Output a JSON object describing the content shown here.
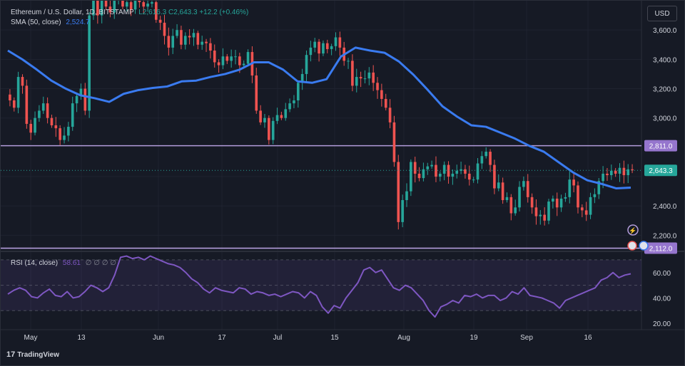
{
  "header": {
    "symbol": "Ethereum / U.S. Dollar, 1D, BITSTAMP",
    "ohlc_low": "L2,616.3",
    "ohlc_close": "C2,643.3",
    "ohlc_change": "+12.2 (+0.46%)",
    "sma_label": "SMA (50, close)",
    "sma_value": "2,524.7",
    "rsi_label": "RSI (14, close)",
    "rsi_value": "58.61",
    "rsi_placeholders": "∅  ∅  ∅  ∅",
    "currency": "USD",
    "brand": "TradingView"
  },
  "colors": {
    "up": "#26a69a",
    "down": "#ef5350",
    "sma": "#3a7bf0",
    "level": "#b39ddb",
    "rsi": "#7e57c2",
    "background": "#161a25"
  },
  "chart_data": [
    {
      "type": "candlestick",
      "series_name": "Ethereum / U.S. Dollar",
      "x_labels": [
        "May",
        "13",
        "Jun",
        "17",
        "Jul",
        "15",
        "Aug",
        "19",
        "Sep",
        "16"
      ],
      "y_ticks": [
        "3,600.0",
        "3,400.0",
        "3,200.0",
        "3,000.0",
        "2,400.0",
        "2,200.0"
      ],
      "ylim": [
        2100,
        3800
      ],
      "last_price": "2,643.3",
      "horizontal_levels": [
        {
          "value": 2811.0,
          "label": "2,811.0"
        },
        {
          "value": 2112.0,
          "label": "2,112.0"
        }
      ],
      "close": [
        3120,
        3070,
        3280,
        3220,
        2960,
        2900,
        3000,
        3050,
        3100,
        3000,
        2950,
        2930,
        2850,
        2880,
        2940,
        3100,
        3150,
        3200,
        3050,
        3700,
        3800,
        3700,
        3800,
        3760,
        3720,
        3800,
        3830,
        3760,
        3790,
        3740,
        3800,
        3790,
        3760,
        3780,
        3790,
        3670,
        3650,
        3560,
        3480,
        3560,
        3600,
        3500,
        3560,
        3550,
        3580,
        3500,
        3520,
        3510,
        3460,
        3380,
        3360,
        3420,
        3390,
        3420,
        3420,
        3360,
        3370,
        3450,
        3290,
        3050,
        2970,
        3000,
        2850,
        2980,
        3020,
        3000,
        3060,
        3100,
        3120,
        3240,
        3300,
        3430,
        3480,
        3520,
        3440,
        3510,
        3470,
        3490,
        3550,
        3480,
        3390,
        3390,
        3220,
        3280,
        3270,
        3270,
        3310,
        3240,
        3190,
        3130,
        3070,
        2970,
        2700,
        2290,
        2440,
        2500,
        2700,
        2620,
        2590,
        2650,
        2670,
        2680,
        2600,
        2620,
        2680,
        2600,
        2620,
        2640,
        2650,
        2620,
        2580,
        2580,
        2690,
        2740,
        2770,
        2680,
        2520,
        2560,
        2440,
        2460,
        2350,
        2390,
        2530,
        2570,
        2460,
        2390,
        2330,
        2340,
        2300,
        2430,
        2450,
        2390,
        2450,
        2460,
        2580,
        2540,
        2390,
        2370,
        2340,
        2460,
        2480,
        2570,
        2620,
        2610,
        2640,
        2620,
        2660,
        2610,
        2650,
        2643
      ],
      "sma": [
        3460,
        3400,
        3330,
        3255,
        3200,
        3155,
        3135,
        3110,
        3165,
        3190,
        3205,
        3215,
        3250,
        3255,
        3280,
        3300,
        3330,
        3380,
        3380,
        3330,
        3250,
        3240,
        3265,
        3420,
        3480,
        3460,
        3445,
        3385,
        3295,
        3190,
        3080,
        3010,
        2950,
        2940,
        2900,
        2860,
        2810,
        2770,
        2700,
        2630,
        2575,
        2550,
        2520,
        2525
      ],
      "sma_last": 2524.7
    },
    {
      "type": "line",
      "series_name": "RSI (14, close)",
      "y_ticks": [
        "60.00",
        "40.00",
        "20.00"
      ],
      "ylim": [
        15,
        75
      ],
      "last_value": 58.61,
      "values": [
        43,
        46,
        48,
        46,
        41,
        40,
        44,
        47,
        42,
        41,
        45,
        40,
        41,
        45,
        50,
        48,
        45,
        48,
        58,
        72,
        73,
        71,
        72,
        70,
        73,
        71,
        69,
        67,
        66,
        64,
        60,
        55,
        52,
        47,
        44,
        48,
        46,
        45,
        44,
        48,
        47,
        43,
        45,
        44,
        42,
        43,
        41,
        43,
        45,
        44,
        40,
        45,
        42,
        33,
        28,
        34,
        32,
        40,
        46,
        52,
        62,
        64,
        60,
        62,
        55,
        48,
        46,
        50,
        48,
        43,
        38,
        30,
        25,
        33,
        35,
        38,
        36,
        42,
        41,
        43,
        40,
        42,
        42,
        38,
        40,
        45,
        43,
        48,
        42,
        41,
        40,
        38,
        36,
        32,
        38,
        40,
        42,
        44,
        46,
        48,
        54,
        56,
        60,
        56,
        58,
        59
      ]
    }
  ]
}
